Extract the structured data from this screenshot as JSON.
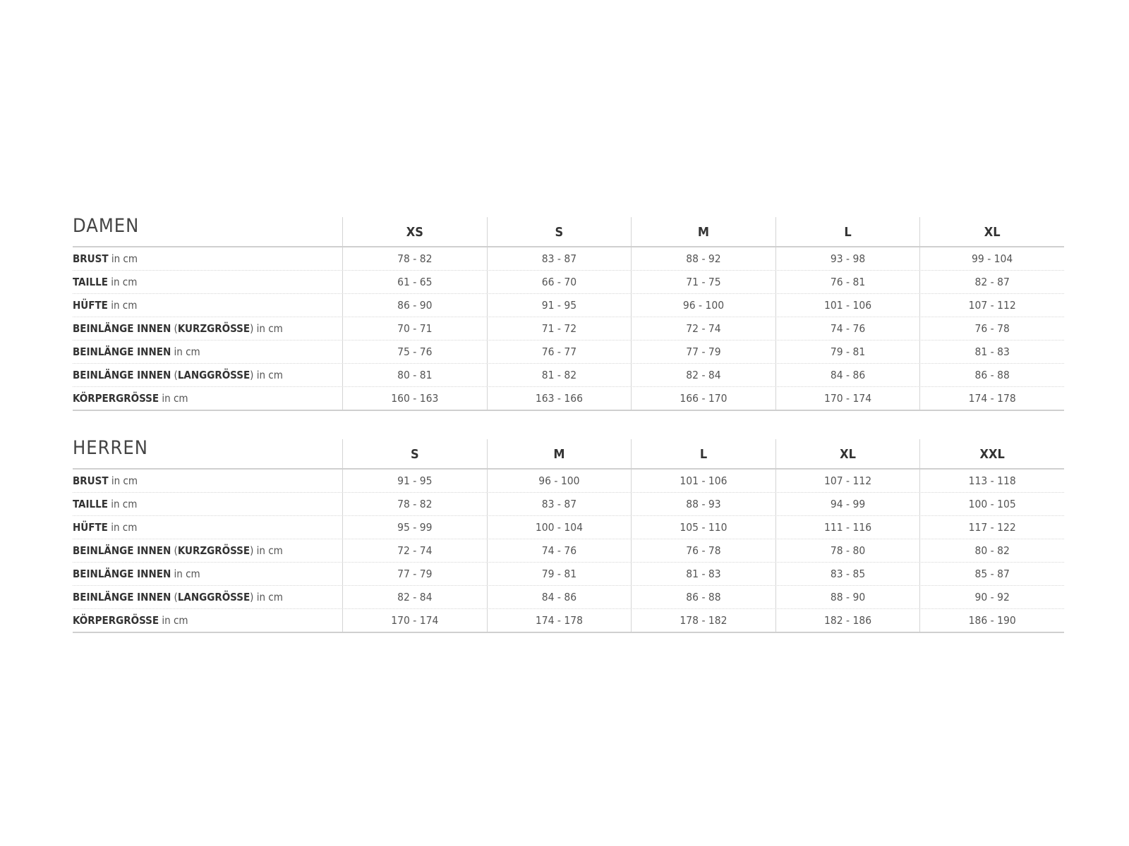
{
  "tables": [
    {
      "title": "DAMEN",
      "sizes": [
        "XS",
        "S",
        "M",
        "L",
        "XL"
      ],
      "rows": [
        {
          "label": [
            {
              "t": "BRUST",
              "b": true
            },
            {
              "t": " in cm",
              "b": false
            }
          ],
          "values": [
            "78 - 82",
            "83 - 87",
            "88 - 92",
            "93 - 98",
            "99 - 104"
          ]
        },
        {
          "label": [
            {
              "t": "TAILLE",
              "b": true
            },
            {
              "t": " in cm",
              "b": false
            }
          ],
          "values": [
            "61 - 65",
            "66 - 70",
            "71 - 75",
            "76 - 81",
            "82 - 87"
          ]
        },
        {
          "label": [
            {
              "t": "HÜFTE",
              "b": true
            },
            {
              "t": " in cm",
              "b": false
            }
          ],
          "values": [
            "86 - 90",
            "91 - 95",
            "96 - 100",
            "101 - 106",
            "107 - 112"
          ]
        },
        {
          "label": [
            {
              "t": "BEINLÄNGE INNEN",
              "b": true
            },
            {
              "t": " (",
              "b": false
            },
            {
              "t": "KURZGRÖSSE",
              "b": true
            },
            {
              "t": ") in cm",
              "b": false
            }
          ],
          "values": [
            "70 - 71",
            "71 - 72",
            "72 - 74",
            "74 - 76",
            "76 - 78"
          ]
        },
        {
          "label": [
            {
              "t": "BEINLÄNGE INNEN",
              "b": true
            },
            {
              "t": " in cm",
              "b": false
            }
          ],
          "values": [
            "75 - 76",
            "76 - 77",
            "77 - 79",
            "79 - 81",
            "81 - 83"
          ]
        },
        {
          "label": [
            {
              "t": "BEINLÄNGE INNEN",
              "b": true
            },
            {
              "t": " (",
              "b": false
            },
            {
              "t": "LANGGRÖSSE",
              "b": true
            },
            {
              "t": ") in cm",
              "b": false
            }
          ],
          "values": [
            "80 - 81",
            "81 - 82",
            "82 - 84",
            "84 - 86",
            "86 - 88"
          ]
        },
        {
          "label": [
            {
              "t": "KÖRPERGRÖSSE",
              "b": true
            },
            {
              "t": " in cm",
              "b": false
            }
          ],
          "values": [
            "160 - 163",
            "163 - 166",
            "166 - 170",
            "170 - 174",
            "174 - 178"
          ]
        }
      ]
    },
    {
      "title": "HERREN",
      "sizes": [
        "S",
        "M",
        "L",
        "XL",
        "XXL"
      ],
      "rows": [
        {
          "label": [
            {
              "t": "BRUST",
              "b": true
            },
            {
              "t": " in cm",
              "b": false
            }
          ],
          "values": [
            "91 - 95",
            "96 - 100",
            "101 - 106",
            "107 - 112",
            "113 - 118"
          ]
        },
        {
          "label": [
            {
              "t": "TAILLE",
              "b": true
            },
            {
              "t": " in cm",
              "b": false
            }
          ],
          "values": [
            "78 - 82",
            "83 - 87",
            "88 - 93",
            "94 - 99",
            "100 - 105"
          ]
        },
        {
          "label": [
            {
              "t": "HÜFTE",
              "b": true
            },
            {
              "t": " in cm",
              "b": false
            }
          ],
          "values": [
            "95 - 99",
            "100 - 104",
            "105 - 110",
            "111 - 116",
            "117 - 122"
          ]
        },
        {
          "label": [
            {
              "t": "BEINLÄNGE INNEN",
              "b": true
            },
            {
              "t": " (",
              "b": false
            },
            {
              "t": "KURZGRÖSSE",
              "b": true
            },
            {
              "t": ") in cm",
              "b": false
            }
          ],
          "values": [
            "72 - 74",
            "74 - 76",
            "76 - 78",
            "78 - 80",
            "80 - 82"
          ]
        },
        {
          "label": [
            {
              "t": "BEINLÄNGE INNEN",
              "b": true
            },
            {
              "t": " in cm",
              "b": false
            }
          ],
          "values": [
            "77 - 79",
            "79 - 81",
            "81 - 83",
            "83 - 85",
            "85 - 87"
          ]
        },
        {
          "label": [
            {
              "t": "BEINLÄNGE INNEN",
              "b": true
            },
            {
              "t": " (",
              "b": false
            },
            {
              "t": "LANGGRÖSSE",
              "b": true
            },
            {
              "t": ") in cm",
              "b": false
            }
          ],
          "values": [
            "82 - 84",
            "84 - 86",
            "86 - 88",
            "88 - 90",
            "90 - 92"
          ]
        },
        {
          "label": [
            {
              "t": "KÖRPERGRÖSSE",
              "b": true
            },
            {
              "t": " in cm",
              "b": false
            }
          ],
          "values": [
            "170 - 174",
            "174 - 178",
            "178 - 182",
            "182 - 186",
            "186 - 190"
          ]
        }
      ]
    }
  ]
}
